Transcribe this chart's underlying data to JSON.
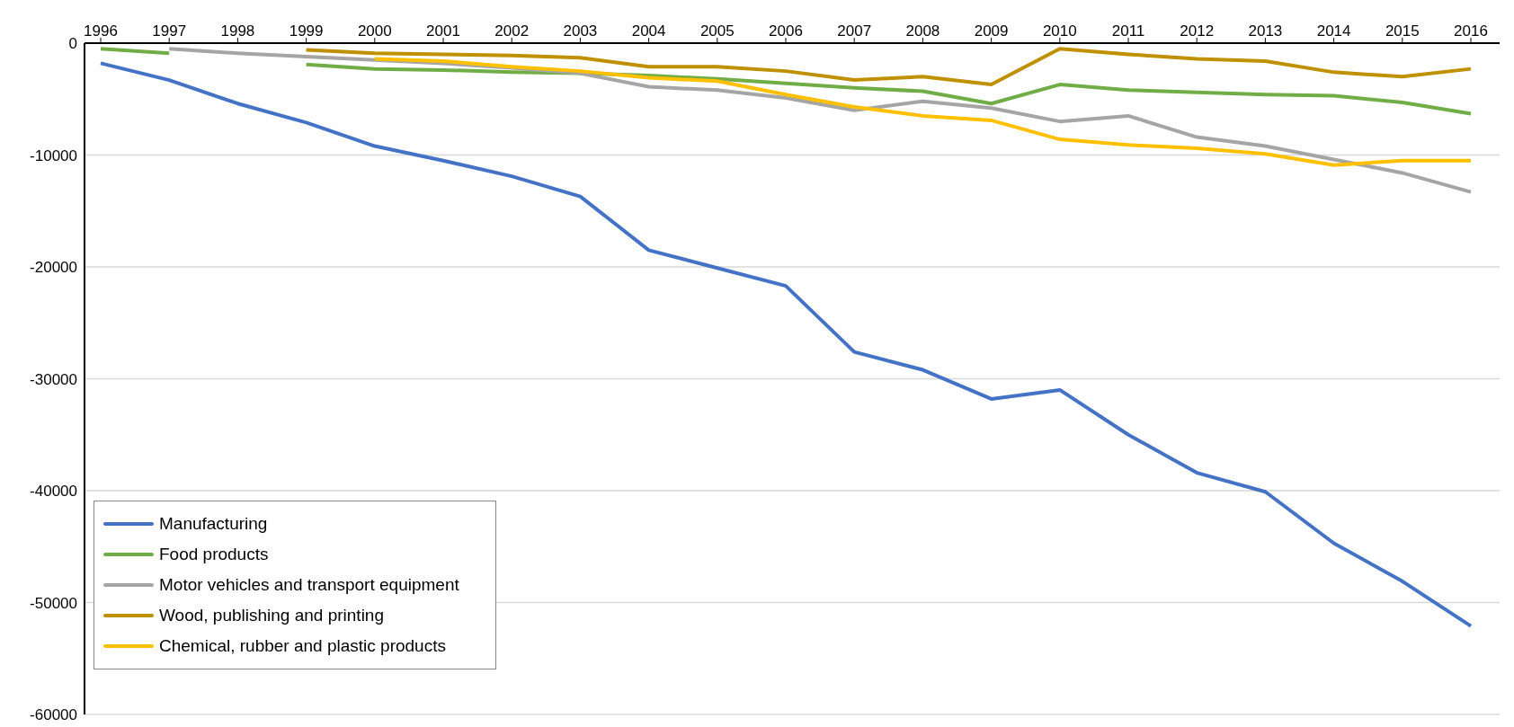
{
  "chart_data": {
    "type": "line",
    "categories": [
      "1996",
      "1997",
      "1998",
      "1999",
      "2000",
      "2001",
      "2002",
      "2003",
      "2004",
      "2005",
      "2006",
      "2007",
      "2008",
      "2009",
      "2010",
      "2011",
      "2012",
      "2013",
      "2014",
      "2015",
      "2016"
    ],
    "series": [
      {
        "name": "Manufacturing",
        "color": "#4472c4",
        "values": [
          -1800,
          -3300,
          -5400,
          -7100,
          -9200,
          -10500,
          -11900,
          -13700,
          -18500,
          -20100,
          -21700,
          -27600,
          -29200,
          -31800,
          -31000,
          -35000,
          -38400,
          -40100,
          -44700,
          -48100,
          -52100
        ]
      },
      {
        "name": "Food products",
        "color": "#70ad47",
        "values": [
          -500,
          -900,
          null,
          -1900,
          -2300,
          -2400,
          -2600,
          -2700,
          -2900,
          -3200,
          -3600,
          -4000,
          -4300,
          -5400,
          -3700,
          -4200,
          -4400,
          -4600,
          -4700,
          -5300,
          -6300
        ]
      },
      {
        "name": "Motor vehicles and transport equipment",
        "color": "#a5a5a5",
        "values": [
          null,
          -500,
          -900,
          -1200,
          -1500,
          -1800,
          -2200,
          -2700,
          -3900,
          -4200,
          -4900,
          -6000,
          -5200,
          -5800,
          -7000,
          -6500,
          -8400,
          -9200,
          -10400,
          -11600,
          -13300
        ]
      },
      {
        "name": "Wood, publishing and printing",
        "color": "#bf9000",
        "values": [
          null,
          null,
          null,
          -600,
          -900,
          -1000,
          -1100,
          -1300,
          -2100,
          -2100,
          -2500,
          -3300,
          -3000,
          -3700,
          -500,
          -1000,
          -1400,
          -1600,
          -2600,
          -3000,
          -2300
        ]
      },
      {
        "name": "Chemical, rubber and plastic products",
        "color": "#ffc000",
        "values": [
          null,
          null,
          null,
          null,
          -1400,
          -1600,
          -2100,
          -2500,
          -3100,
          -3400,
          -4600,
          -5700,
          -6500,
          -6900,
          -8600,
          -9100,
          -9400,
          -9900,
          -10900,
          -10500,
          -10500
        ]
      }
    ],
    "ylim": [
      -60000,
      0
    ],
    "yticks": [
      -60000,
      -50000,
      -40000,
      -30000,
      -20000,
      -10000,
      0
    ],
    "grid": "y",
    "legend": "bottom left",
    "line_style": "solid",
    "marker": "none"
  }
}
